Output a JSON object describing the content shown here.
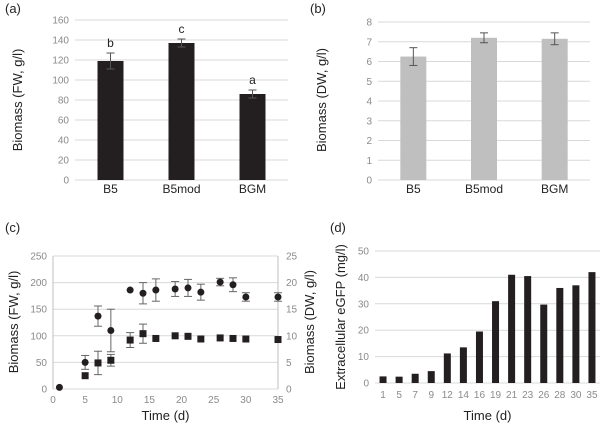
{
  "chart_data": [
    {
      "panel": "(a)",
      "type": "bar",
      "categories": [
        "B5",
        "B5mod",
        "BGM"
      ],
      "values": [
        119,
        137,
        86
      ],
      "errors": [
        8,
        4,
        4
      ],
      "letters": [
        "b",
        "c",
        "a"
      ],
      "ylabel": "Biomass (FW, g/l)",
      "ylim": [
        0,
        160
      ],
      "yticks": [
        0,
        20,
        40,
        60,
        80,
        100,
        120,
        140,
        160
      ],
      "color": "#231f20",
      "grid": true
    },
    {
      "panel": "(b)",
      "type": "bar",
      "categories": [
        "B5",
        "B5mod",
        "BGM"
      ],
      "values": [
        6.25,
        7.2,
        7.15
      ],
      "errors": [
        0.45,
        0.25,
        0.3
      ],
      "ylabel": "Biomass (DW, g/l)",
      "ylim": [
        0,
        8
      ],
      "yticks": [
        0,
        1,
        2,
        3,
        4,
        5,
        6,
        7,
        8
      ],
      "color": "#bfbfbf",
      "grid": true
    },
    {
      "panel": "(c)",
      "type": "scatter",
      "xlabel": "Time (d)",
      "xlim": [
        0,
        35
      ],
      "xticks": [
        0,
        5,
        10,
        15,
        20,
        25,
        30,
        35
      ],
      "ylabel": "Biomass (FW, g/l)",
      "ylim": [
        0,
        250
      ],
      "yticks": [
        0,
        50,
        100,
        150,
        200,
        250
      ],
      "y2label": "Biomass (DW, g/l)",
      "y2lim": [
        0,
        25
      ],
      "y2ticks": [
        0,
        5,
        10,
        15,
        20,
        25
      ],
      "series": [
        {
          "name": "FW",
          "marker": "circle",
          "axis": "left",
          "x": [
            1,
            5,
            7,
            9,
            12,
            14,
            16,
            19,
            21,
            23,
            26,
            28,
            30,
            35
          ],
          "y": [
            3,
            50,
            137,
            110,
            186,
            180,
            186,
            188,
            190,
            182,
            201,
            196,
            173,
            173
          ],
          "err": [
            0,
            13,
            19,
            40,
            0,
            20,
            21,
            14,
            16,
            15,
            7,
            13,
            8,
            8
          ]
        },
        {
          "name": "DW",
          "marker": "square",
          "axis": "right",
          "x": [
            5,
            7,
            9,
            12,
            14,
            16,
            19,
            21,
            23,
            26,
            28,
            30,
            35
          ],
          "y": [
            2.5,
            4.9,
            5.4,
            9.2,
            10.4,
            9.5,
            10.0,
            9.9,
            9.4,
            9.6,
            9.5,
            9.4,
            9.3
          ],
          "err": [
            0,
            2.2,
            1.1,
            1.4,
            1.8,
            0,
            0,
            0,
            0,
            0,
            0,
            0,
            0
          ]
        }
      ],
      "grid": true
    },
    {
      "panel": "(d)",
      "type": "bar",
      "categories": [
        "1",
        "5",
        "7",
        "9",
        "12",
        "14",
        "16",
        "19",
        "21",
        "23",
        "26",
        "28",
        "30",
        "35"
      ],
      "values": [
        2.5,
        2.4,
        3.5,
        4.5,
        11.2,
        13.5,
        19.5,
        31,
        41,
        40.5,
        29.7,
        36,
        37,
        42
      ],
      "xlabel": "Time (d)",
      "ylabel": "Extracellular eGFP (mg/l)",
      "ylim": [
        0,
        50
      ],
      "yticks": [
        0,
        10,
        20,
        30,
        40,
        50
      ],
      "color": "#231f20",
      "grid": true
    }
  ]
}
